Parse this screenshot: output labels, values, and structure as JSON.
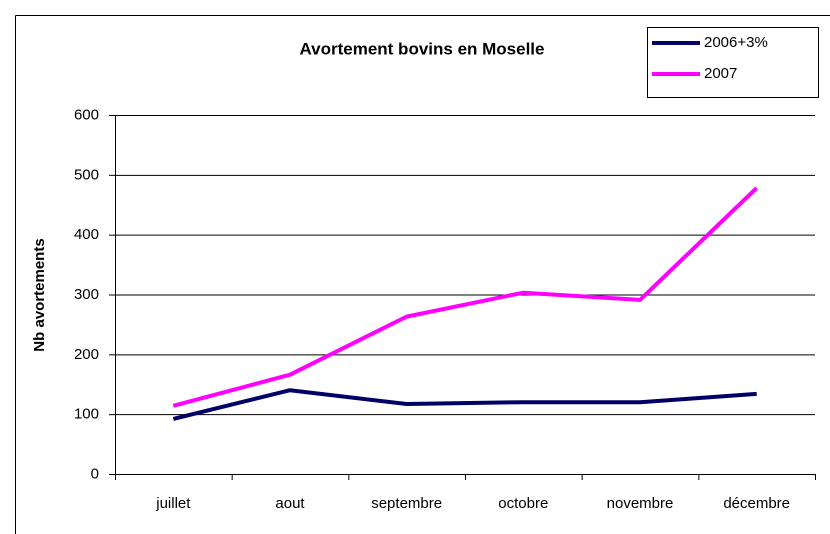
{
  "chart_data": {
    "type": "line",
    "title": "Avortement bovins en Moselle",
    "y_label": "Nb avortements",
    "categories": [
      "juillet",
      "aout",
      "septembre",
      "octobre",
      "novembre",
      "décembre"
    ],
    "series": [
      {
        "name": "2006+3%",
        "color": "#000066",
        "values": [
          92,
          140,
          117,
          120,
          120,
          134
        ]
      },
      {
        "name": "2007",
        "color": "#ff00ff",
        "values": [
          114,
          166,
          263,
          303,
          291,
          478
        ]
      }
    ],
    "ylim": [
      0,
      600
    ],
    "yticks": [
      0,
      100,
      200,
      300,
      400,
      500,
      600
    ],
    "grid": true,
    "legend": "top-right"
  }
}
